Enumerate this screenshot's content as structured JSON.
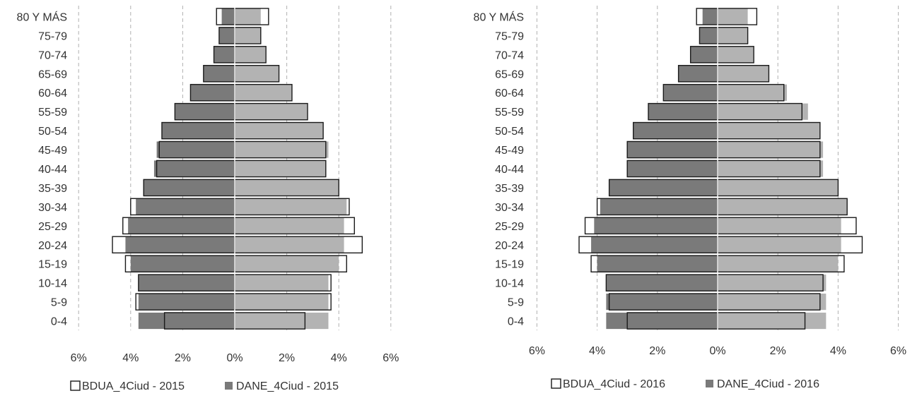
{
  "chart_data": [
    {
      "type": "bar",
      "orientation": "horizontal",
      "layout": "population-pyramid",
      "categories": [
        "80 Y MÁS",
        "75-79",
        "70-74",
        "65-69",
        "60-64",
        "55-59",
        "50-54",
        "45-49",
        "40-44",
        "35-39",
        "30-34",
        "25-29",
        "20-24",
        "15-19",
        "10-14",
        "5-9",
        "0-4"
      ],
      "xlim": [
        -6,
        6
      ],
      "x_tick_labels": [
        "6%",
        "4%",
        "2%",
        "0%",
        "2%",
        "4%",
        "6%"
      ],
      "grid": "dashed vertical",
      "legend_position": "bottom",
      "series": [
        {
          "name": "BDUA_4Ciud - 2015",
          "style": "outline",
          "left": [
            0.7,
            0.6,
            0.8,
            1.2,
            1.7,
            2.3,
            2.8,
            2.9,
            3.0,
            3.5,
            4.0,
            4.3,
            4.7,
            4.2,
            3.7,
            3.8,
            2.7
          ],
          "right": [
            1.3,
            1.0,
            1.2,
            1.7,
            2.2,
            2.8,
            3.4,
            3.5,
            3.5,
            4.0,
            4.4,
            4.6,
            4.9,
            4.3,
            3.7,
            3.7,
            2.7
          ]
        },
        {
          "name": "DANE_4Ciud - 2015",
          "style": "filled",
          "left": [
            0.5,
            0.6,
            0.8,
            1.2,
            1.7,
            2.3,
            2.8,
            3.0,
            3.1,
            3.5,
            3.8,
            4.1,
            4.2,
            4.0,
            3.7,
            3.7,
            3.7
          ],
          "right": [
            1.0,
            1.0,
            1.2,
            1.7,
            2.2,
            2.8,
            3.4,
            3.6,
            3.5,
            4.0,
            4.3,
            4.2,
            4.2,
            4.0,
            3.6,
            3.6,
            3.6
          ]
        }
      ]
    },
    {
      "type": "bar",
      "orientation": "horizontal",
      "layout": "population-pyramid",
      "categories": [
        "80 Y MÁS",
        "75-79",
        "70-74",
        "65-69",
        "60-64",
        "55-59",
        "50-54",
        "45-49",
        "40-44",
        "35-39",
        "30-34",
        "25-29",
        "20-24",
        "15-19",
        "10-14",
        "5-9",
        "0-4"
      ],
      "xlim": [
        -6,
        6
      ],
      "x_tick_labels": [
        "6%",
        "4%",
        "2%",
        "0%",
        "2%",
        "4%",
        "6%"
      ],
      "grid": "dashed vertical",
      "legend_position": "bottom",
      "series": [
        {
          "name": "BDUA_4Ciud - 2016",
          "style": "outline",
          "left": [
            0.7,
            0.6,
            0.9,
            1.3,
            1.8,
            2.3,
            2.8,
            3.0,
            3.0,
            3.6,
            4.0,
            4.4,
            4.6,
            4.2,
            3.7,
            3.6,
            3.0
          ],
          "right": [
            1.3,
            1.0,
            1.2,
            1.7,
            2.2,
            2.8,
            3.4,
            3.4,
            3.4,
            4.0,
            4.3,
            4.6,
            4.8,
            4.2,
            3.5,
            3.4,
            2.9
          ]
        },
        {
          "name": "DANE_4Ciud - 2016",
          "style": "filled",
          "left": [
            0.5,
            0.6,
            0.9,
            1.3,
            1.8,
            2.3,
            2.8,
            3.0,
            3.0,
            3.6,
            3.9,
            4.1,
            4.2,
            4.0,
            3.7,
            3.7,
            3.7
          ],
          "right": [
            1.0,
            1.0,
            1.2,
            1.7,
            2.3,
            3.0,
            3.4,
            3.5,
            3.5,
            4.0,
            4.3,
            4.1,
            4.1,
            4.0,
            3.6,
            3.6,
            3.6
          ]
        }
      ]
    }
  ],
  "colors": {
    "male_fill": "#7a7a7a",
    "female_fill": "#b3b3b3",
    "outline": "#1a1a1a",
    "grid": "#b0b0b0",
    "text": "#333333"
  }
}
